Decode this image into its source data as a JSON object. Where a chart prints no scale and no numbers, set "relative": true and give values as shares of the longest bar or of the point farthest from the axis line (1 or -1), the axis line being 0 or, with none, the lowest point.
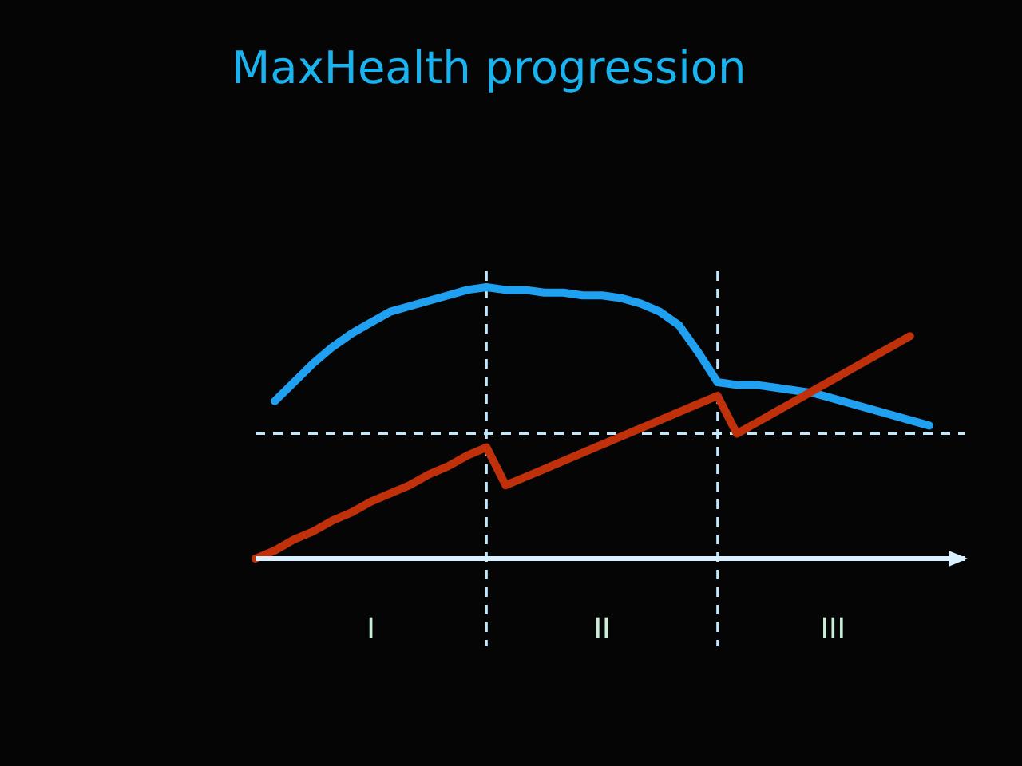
{
  "chart_data": {
    "type": "line",
    "title": "MaxHealth progression",
    "relative": true,
    "categories": [
      null,
      null,
      null,
      null,
      null,
      null,
      "I",
      null,
      null,
      null,
      null,
      null,
      null,
      null,
      null,
      null,
      null,
      null,
      "II",
      null,
      null,
      null,
      null,
      null,
      null,
      null,
      null,
      null,
      null,
      null,
      "III",
      null,
      null,
      null,
      null,
      null,
      null
    ],
    "series": [
      {
        "color": "#1fa0f0",
        "values": [
          null,
          0.58,
          0.65,
          0.72,
          0.78,
          0.83,
          0.87,
          0.91,
          0.93,
          0.95,
          0.97,
          0.99,
          1.0,
          0.99,
          0.99,
          0.98,
          0.98,
          0.97,
          0.97,
          0.96,
          0.94,
          0.91,
          0.86,
          0.76,
          0.65,
          0.64,
          0.64,
          0.63,
          0.62,
          0.61,
          0.59,
          0.57,
          0.55,
          0.53,
          0.51,
          0.49,
          null
        ]
      },
      {
        "color": "#c0300a",
        "values": [
          0,
          0.03,
          0.07,
          0.1,
          0.14,
          0.17,
          0.21,
          0.24,
          0.27,
          0.31,
          0.34,
          0.38,
          0.41,
          0.27,
          0.3,
          0.33,
          0.36,
          0.39,
          0.42,
          0.45,
          0.48,
          0.51,
          0.54,
          0.57,
          0.6,
          0.46,
          0.5,
          0.54,
          0.58,
          0.62,
          0.66,
          0.7,
          0.74,
          0.78,
          0.82,
          null,
          null
        ]
      }
    ],
    "ref_lines": [
      {
        "axis": "y",
        "value": 0.46,
        "color": "#bfe8ff",
        "line_style": "dashed"
      }
    ],
    "marker": "none",
    "line_style": "solid"
  }
}
